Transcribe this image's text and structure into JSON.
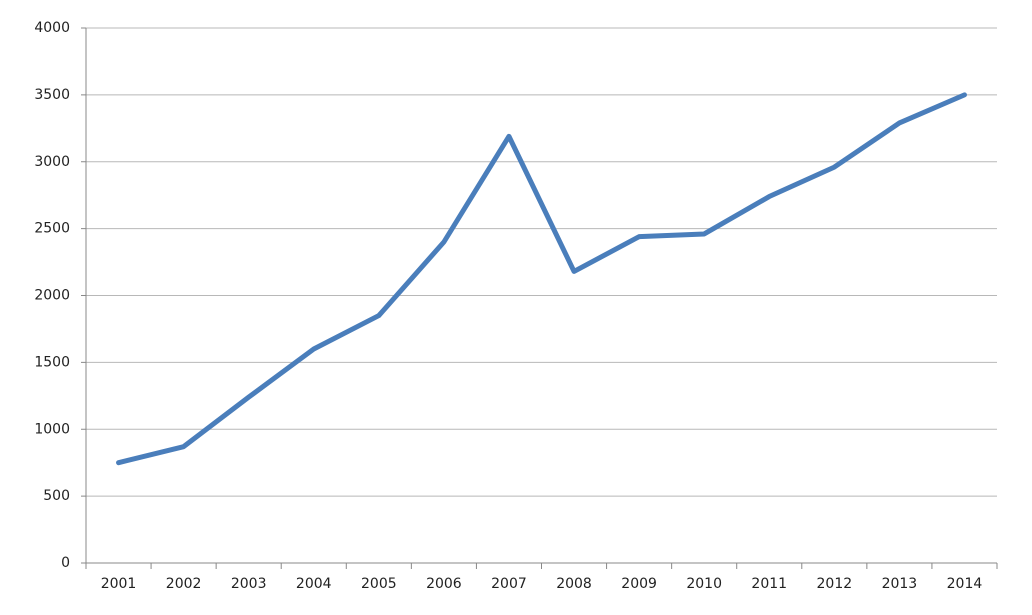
{
  "chart_data": {
    "type": "line",
    "categories": [
      "2001",
      "2002",
      "2003",
      "2004",
      "2005",
      "2006",
      "2007",
      "2008",
      "2009",
      "2010",
      "2011",
      "2012",
      "2013",
      "2014"
    ],
    "series": [
      {
        "color": "#4a7ebb",
        "values": [
          750,
          870,
          1240,
          1600,
          1850,
          2400,
          3190,
          2180,
          2440,
          2460,
          2740,
          2960,
          3290,
          3500
        ]
      }
    ],
    "ylim": [
      0,
      4000
    ],
    "yticks": [
      0,
      500,
      1000,
      1500,
      2000,
      2500,
      3000,
      3500,
      4000
    ],
    "grid": true
  }
}
